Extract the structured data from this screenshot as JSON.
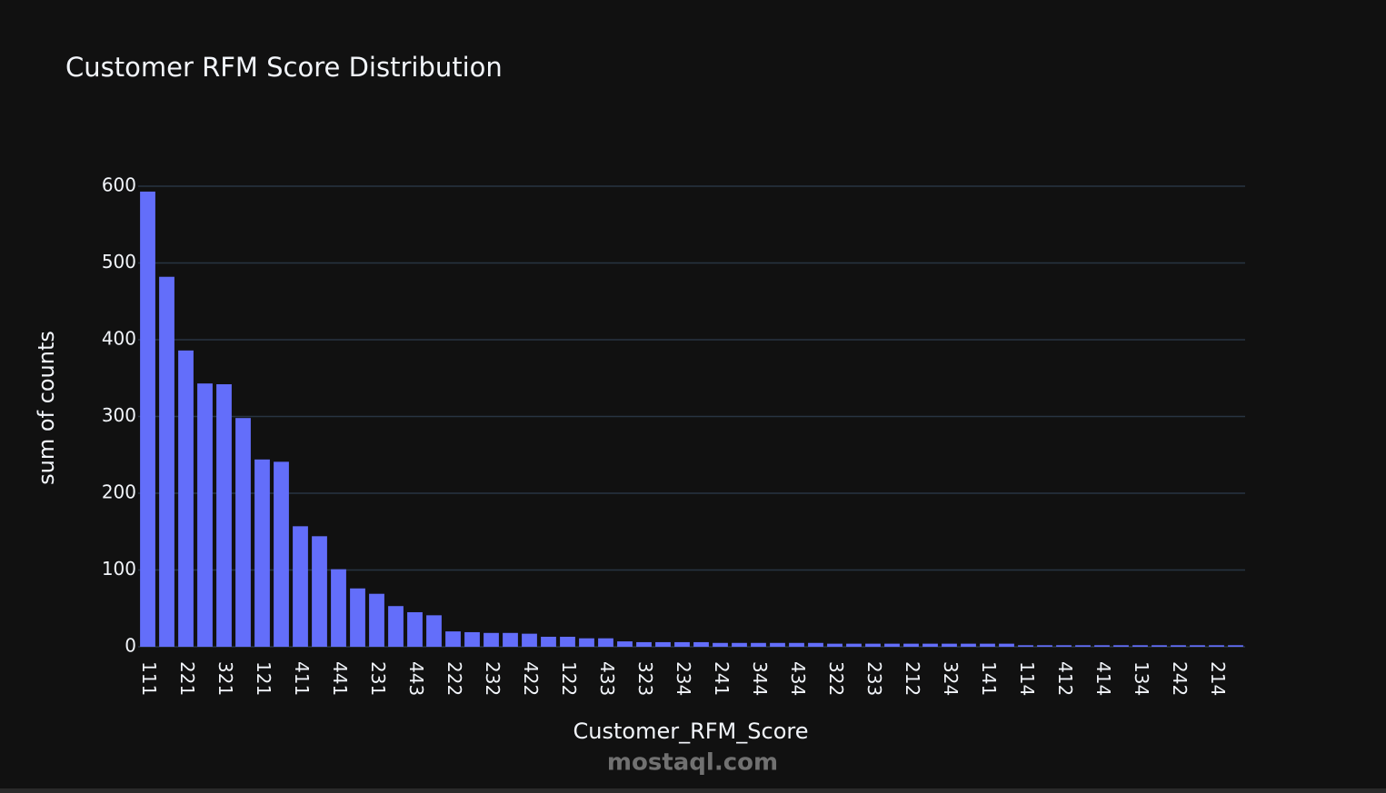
{
  "chart_data": {
    "type": "bar",
    "title": "Customer RFM Score Distribution",
    "x_label": "Customer_RFM_Score",
    "y_label": "sum of counts",
    "categories": [
      "111",
      null,
      "221",
      null,
      "321",
      null,
      "121",
      null,
      "411",
      null,
      "441",
      null,
      "231",
      null,
      "443",
      null,
      "222",
      null,
      "232",
      null,
      "422",
      null,
      "122",
      null,
      "433",
      null,
      "323",
      null,
      "234",
      null,
      "241",
      null,
      "344",
      null,
      "434",
      null,
      "322",
      null,
      "233",
      null,
      "212",
      null,
      "324",
      null,
      "141",
      null,
      "114",
      null,
      "412",
      null,
      "414",
      null,
      "134",
      null,
      "242",
      null,
      "214",
      null
    ],
    "values": [
      593,
      482,
      386,
      343,
      342,
      298,
      244,
      241,
      157,
      144,
      101,
      76,
      69,
      53,
      45,
      41,
      20,
      19,
      18,
      18,
      17,
      13,
      13,
      11,
      11,
      7,
      6,
      6,
      6,
      6,
      5,
      5,
      5,
      5,
      5,
      5,
      4,
      4,
      4,
      4,
      4,
      4,
      4,
      4,
      4,
      4,
      2,
      2,
      2,
      2,
      2,
      2,
      2,
      2,
      2,
      2,
      2,
      2
    ],
    "color": "#636efa",
    "ylim": [
      0,
      600
    ],
    "yticks": [
      0,
      100,
      200,
      300,
      400,
      500,
      600
    ],
    "grid": true
  },
  "watermark": "mostaql.com"
}
